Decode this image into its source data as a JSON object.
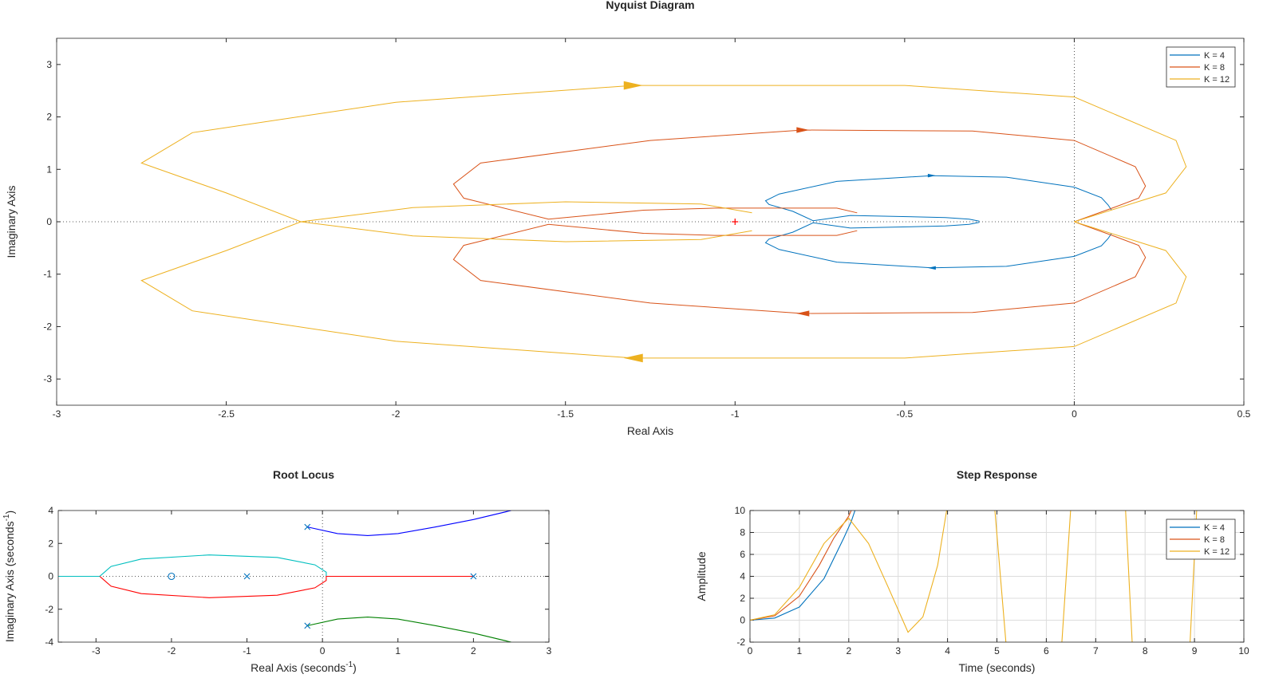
{
  "chart_data": [
    {
      "type": "line",
      "title": "Nyquist Diagram",
      "xlabel": "Real Axis",
      "ylabel": "Imaginary Axis",
      "xlim": [
        -3,
        0.5
      ],
      "ylim": [
        -3.5,
        3.5
      ],
      "xticks": [
        "-3",
        "-2.5",
        "-2",
        "-1.5",
        "-1",
        "-0.5",
        "0",
        "0.5"
      ],
      "yticks": [
        "-3",
        "-2",
        "-1",
        "0",
        "1",
        "2",
        "3"
      ],
      "grid": false,
      "legend_position": "top-right",
      "critical_point": [
        -1,
        0
      ],
      "series": [
        {
          "name": "K = 4",
          "color": "#0072BD",
          "points": [
            [
              -0.28,
              0.01
            ],
            [
              -0.31,
              0.05
            ],
            [
              -0.38,
              0.08
            ],
            [
              -0.52,
              0.1
            ],
            [
              -0.66,
              0.12
            ],
            [
              -0.77,
              0.02
            ],
            [
              -0.83,
              0.2
            ],
            [
              -0.9,
              0.33
            ],
            [
              -0.91,
              0.4
            ],
            [
              -0.87,
              0.53
            ],
            [
              -0.7,
              0.77
            ],
            [
              -0.42,
              0.88
            ],
            [
              -0.2,
              0.85
            ],
            [
              0,
              0.66
            ],
            [
              0.08,
              0.46
            ],
            [
              0.1,
              0.32
            ],
            [
              0.11,
              0.22
            ]
          ]
        },
        {
          "name": "K = 8",
          "color": "#D95319",
          "points": [
            [
              -0.64,
              0.17
            ],
            [
              -0.7,
              0.26
            ],
            [
              -0.86,
              0.26
            ],
            [
              -1.06,
              0.26
            ],
            [
              -1.27,
              0.22
            ],
            [
              -1.55,
              0.05
            ],
            [
              -1.8,
              0.45
            ],
            [
              -1.83,
              0.72
            ],
            [
              -1.75,
              1.12
            ],
            [
              -1.25,
              1.55
            ],
            [
              -0.8,
              1.75
            ],
            [
              -0.3,
              1.73
            ],
            [
              0,
              1.55
            ],
            [
              0.18,
              1.05
            ],
            [
              0.21,
              0.68
            ],
            [
              0.19,
              0.45
            ],
            [
              0.12,
              0.28
            ],
            [
              0,
              0
            ]
          ]
        },
        {
          "name": "K = 12",
          "color": "#EDB120",
          "points": [
            [
              -0.95,
              0.17
            ],
            [
              -1.1,
              0.34
            ],
            [
              -1.5,
              0.38
            ],
            [
              -1.95,
              0.27
            ],
            [
              -2.28,
              0
            ],
            [
              -2.5,
              0.55
            ],
            [
              -2.75,
              1.12
            ],
            [
              -2.6,
              1.7
            ],
            [
              -2,
              2.28
            ],
            [
              -1.3,
              2.6
            ],
            [
              -0.5,
              2.6
            ],
            [
              0,
              2.38
            ],
            [
              0.3,
              1.55
            ],
            [
              0.33,
              1.05
            ],
            [
              0.27,
              0.55
            ],
            [
              0,
              0
            ]
          ]
        }
      ]
    },
    {
      "type": "line",
      "title": "Root Locus",
      "xlabel": "Real Axis (seconds",
      "xlabel_sup": "-1",
      "xlabel_end": ")",
      "ylabel": "Imaginary Axis (seconds",
      "ylabel_sup": "-1",
      "ylabel_end": ")",
      "xlim": [
        -3.5,
        3
      ],
      "ylim": [
        -4,
        4
      ],
      "xticks": [
        "-3",
        "-2",
        "-1",
        "0",
        "1",
        "2",
        "3"
      ],
      "yticks": [
        "-4",
        "-2",
        "0",
        "2",
        "4"
      ],
      "grid": false,
      "poles": [
        [
          -1,
          0
        ],
        [
          2,
          0
        ],
        [
          -0.2,
          3
        ],
        [
          -0.2,
          -3
        ]
      ],
      "zeros": [
        [
          -2,
          0
        ]
      ],
      "branches": [
        {
          "color": "#0000FF",
          "points": [
            [
              -0.2,
              3
            ],
            [
              0.2,
              2.6
            ],
            [
              0.6,
              2.48
            ],
            [
              1,
              2.6
            ],
            [
              1.5,
              3
            ],
            [
              2,
              3.45
            ],
            [
              2.5,
              4
            ]
          ]
        },
        {
          "color": "#008000",
          "points": [
            [
              -0.2,
              -3
            ],
            [
              0.2,
              -2.6
            ],
            [
              0.6,
              -2.48
            ],
            [
              1,
              -2.6
            ],
            [
              1.5,
              -3
            ],
            [
              2,
              -3.45
            ],
            [
              2.5,
              -4
            ]
          ]
        },
        {
          "color": "#00BFBF",
          "points": [
            [
              -3.5,
              0
            ],
            [
              -2.95,
              0
            ],
            [
              -2.8,
              0.6
            ],
            [
              -2.4,
              1.05
            ],
            [
              -1.5,
              1.3
            ],
            [
              -0.6,
              1.15
            ],
            [
              -0.1,
              0.7
            ],
            [
              0.05,
              0.25
            ],
            [
              0.05,
              0
            ]
          ]
        },
        {
          "color": "#FF0000",
          "points": [
            [
              -2.95,
              0
            ],
            [
              -2.8,
              -0.6
            ],
            [
              -2.4,
              -1.05
            ],
            [
              -1.5,
              -1.3
            ],
            [
              -0.6,
              -1.15
            ],
            [
              -0.1,
              -0.7
            ],
            [
              0.05,
              -0.25
            ],
            [
              0.05,
              0
            ],
            [
              2,
              0
            ]
          ]
        }
      ]
    },
    {
      "type": "line",
      "title": "Step Response",
      "xlabel": "Time (seconds)",
      "ylabel": "Amplitude",
      "xlim": [
        0,
        10
      ],
      "ylim": [
        -2,
        10
      ],
      "xticks": [
        "0",
        "1",
        "2",
        "3",
        "4",
        "5",
        "6",
        "7",
        "8",
        "9",
        "10"
      ],
      "yticks": [
        "-2",
        "0",
        "2",
        "4",
        "6",
        "8",
        "10"
      ],
      "grid": true,
      "legend_position": "top-right",
      "series": [
        {
          "name": "K = 4",
          "color": "#0072BD",
          "points": [
            [
              0,
              0
            ],
            [
              0.5,
              0.2
            ],
            [
              1,
              1.2
            ],
            [
              1.5,
              3.8
            ],
            [
              1.9,
              7.5
            ],
            [
              2.05,
              9
            ],
            [
              2.2,
              11
            ]
          ]
        },
        {
          "name": "K = 8",
          "color": "#D95319",
          "points": [
            [
              0,
              0
            ],
            [
              0.5,
              0.4
            ],
            [
              1,
              2.2
            ],
            [
              1.4,
              5
            ],
            [
              1.7,
              7.5
            ],
            [
              2,
              9.5
            ],
            [
              2.15,
              11
            ]
          ]
        },
        {
          "name": "K = 12",
          "color": "#EDB120",
          "points": [
            [
              0,
              0
            ],
            [
              0.5,
              0.5
            ],
            [
              1,
              3
            ],
            [
              1.5,
              7
            ],
            [
              2,
              9.3
            ],
            [
              2.4,
              7
            ],
            [
              2.8,
              3
            ],
            [
              3.2,
              -1.1
            ],
            [
              3.5,
              0.3
            ],
            [
              3.8,
              5
            ],
            [
              4,
              10.5
            ],
            [
              4.95,
              10.5
            ],
            [
              5.2,
              -3
            ],
            [
              6.3,
              -3
            ],
            [
              6.5,
              10.5
            ],
            [
              7.6,
              10.5
            ],
            [
              7.75,
              -3
            ],
            [
              8.9,
              -3
            ],
            [
              9.05,
              10.5
            ]
          ]
        }
      ]
    }
  ]
}
